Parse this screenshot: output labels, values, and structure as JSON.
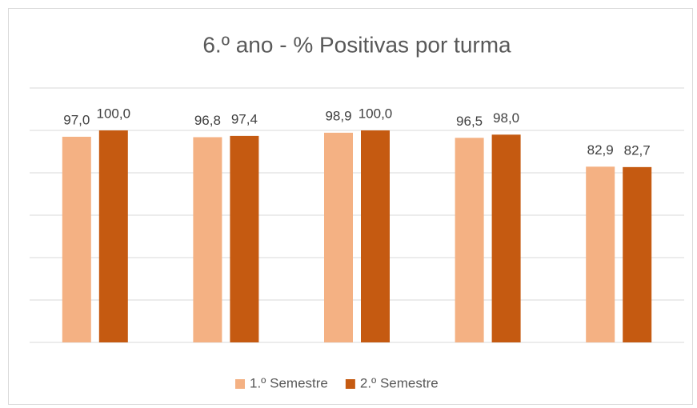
{
  "chart_data": {
    "type": "bar",
    "title": "6.º ano - % Positivas por turma",
    "categories": [
      null,
      null,
      null,
      null,
      null
    ],
    "series": [
      {
        "name": "1.º Semestre",
        "color": "#f4b183",
        "values": [
          97.0,
          96.8,
          98.9,
          96.5,
          82.9
        ],
        "value_labels": [
          "97,0",
          "96,8",
          "98,9",
          "96,5",
          "82,9"
        ]
      },
      {
        "name": "2.º Semestre",
        "color": "#c55a11",
        "values": [
          100.0,
          97.4,
          100.0,
          98.0,
          82.7
        ],
        "value_labels": [
          "100,0",
          "97,4",
          "100,0",
          "98,0",
          "82,7"
        ]
      }
    ],
    "ylim": [
      0,
      120
    ],
    "yticks": [
      0,
      20,
      40,
      60,
      80,
      100,
      120
    ],
    "grid": true,
    "legend": "bottom"
  }
}
